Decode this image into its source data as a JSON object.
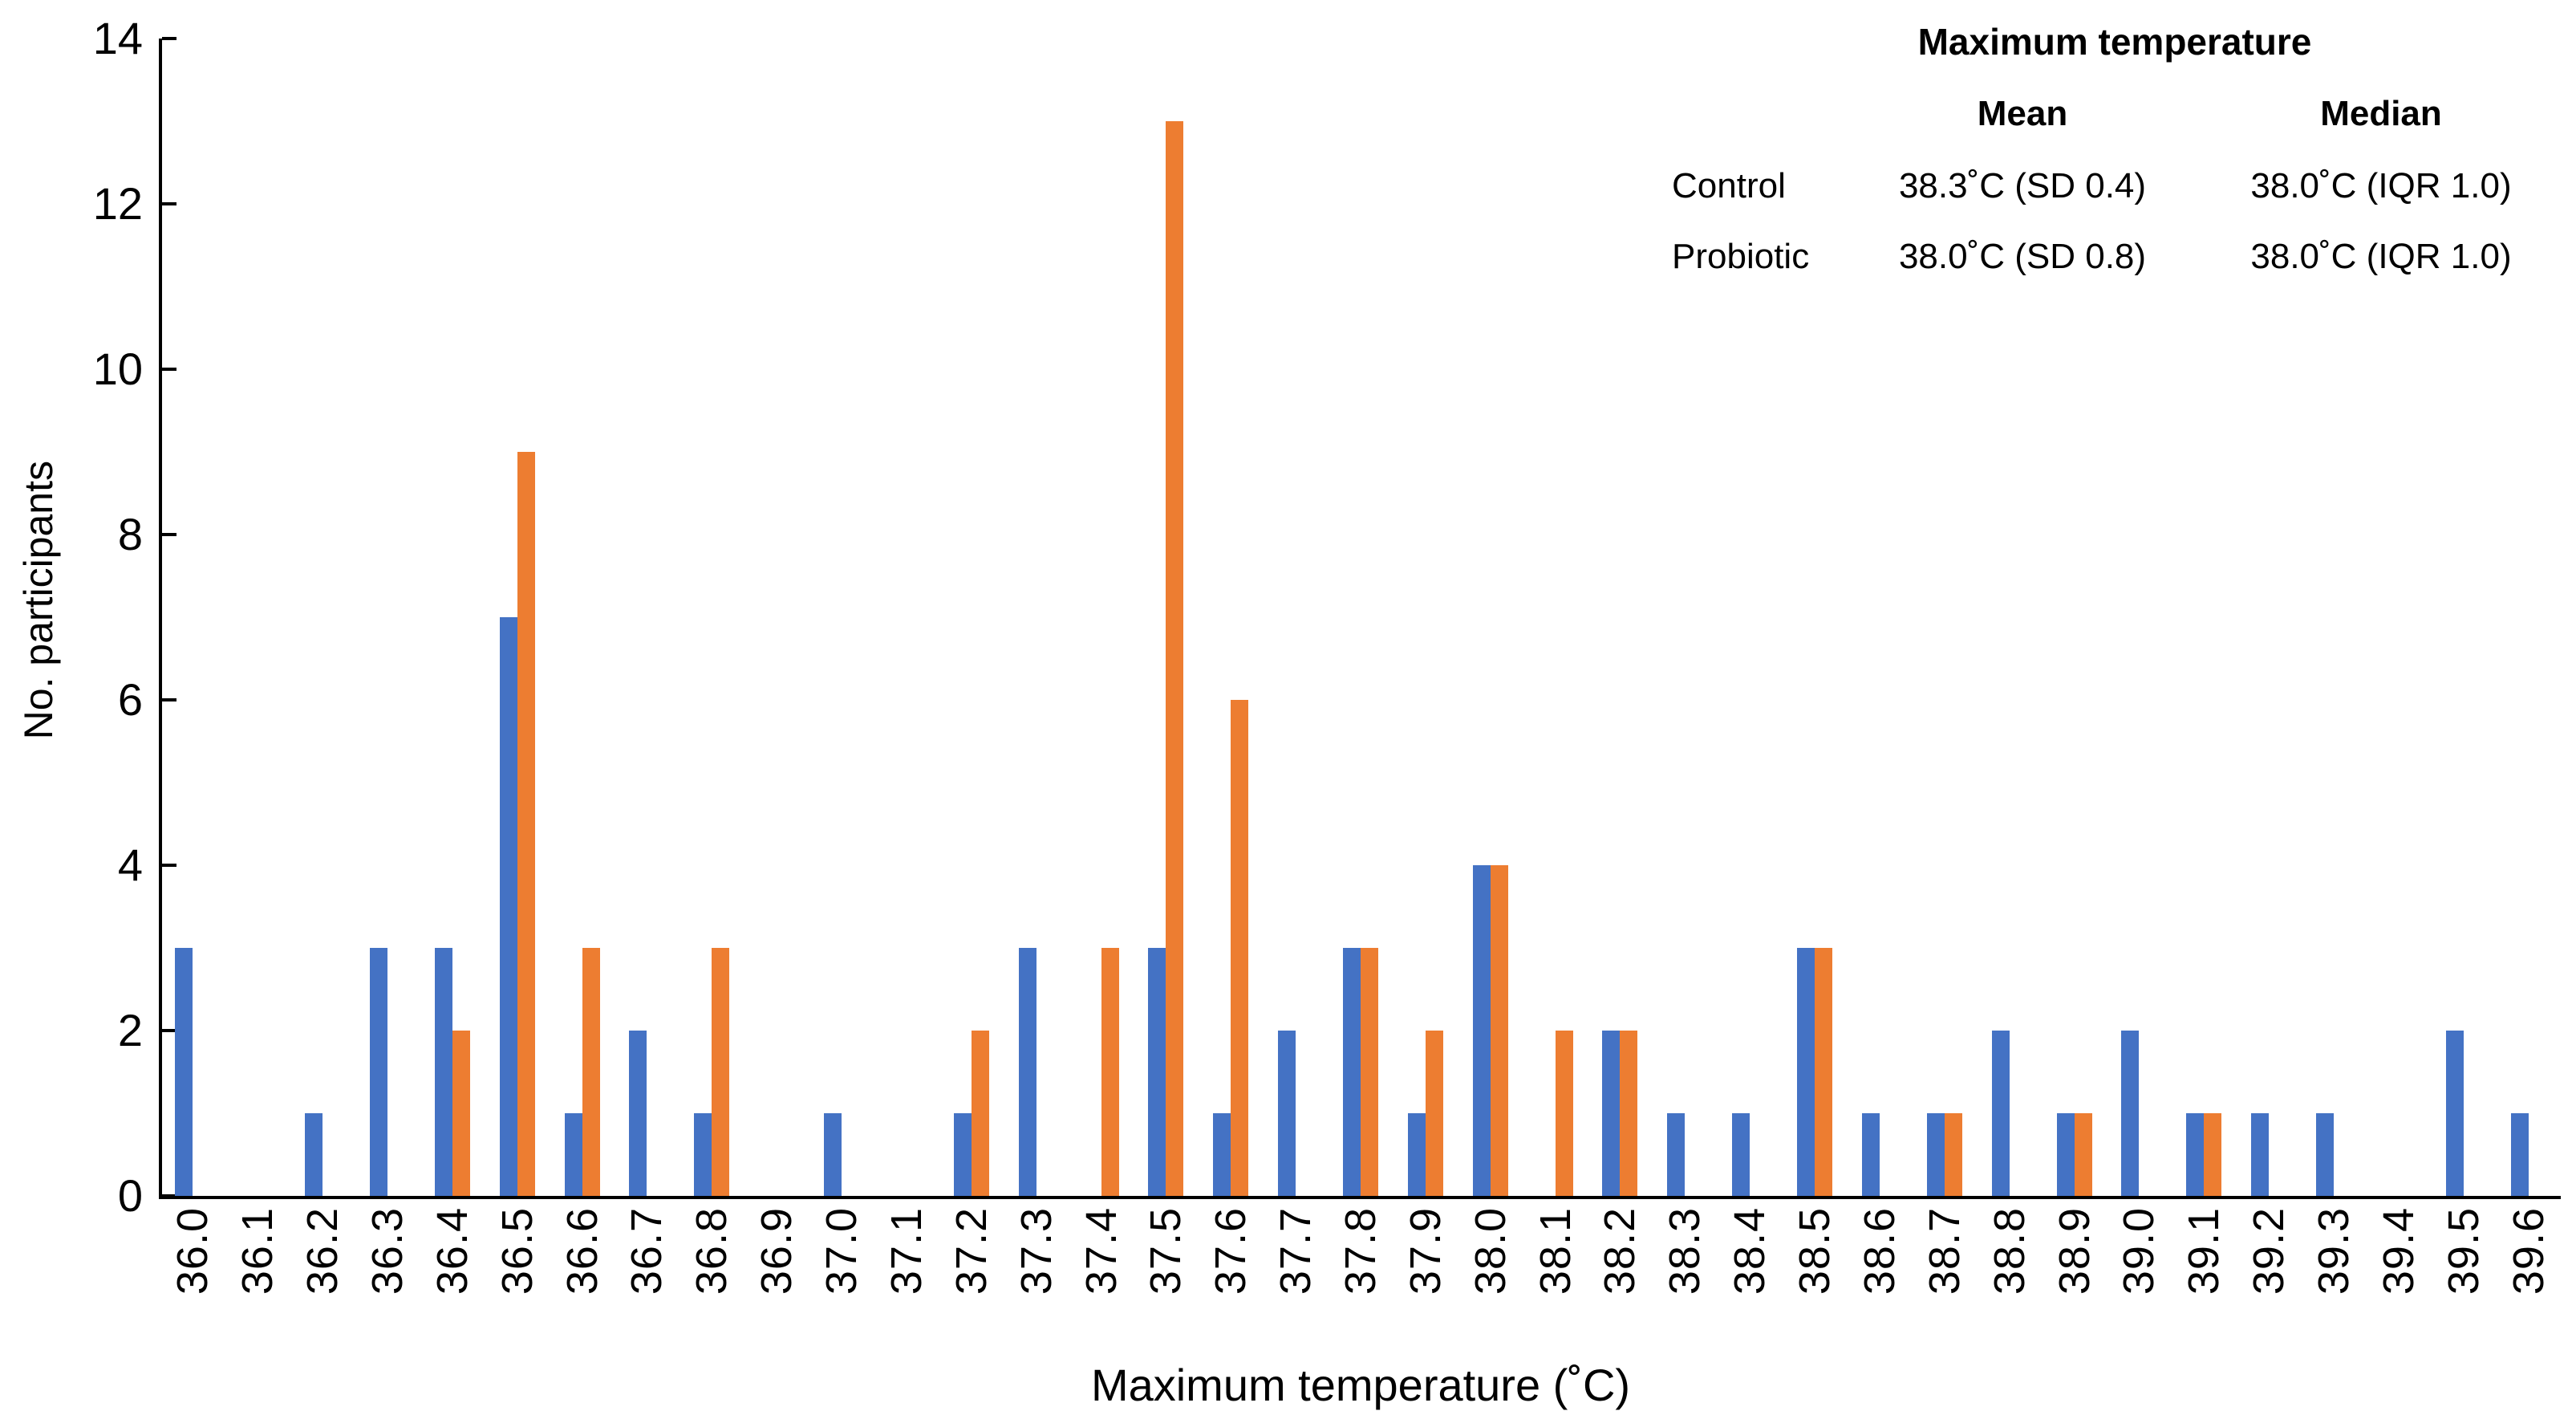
{
  "chart_data": {
    "type": "bar",
    "title": "",
    "categories": [
      "36.0",
      "36.1",
      "36.2",
      "36.3",
      "36.4",
      "36.5",
      "36.6",
      "36.7",
      "36.8",
      "36.9",
      "37.0",
      "37.1",
      "37.2",
      "37.3",
      "37.4",
      "37.5",
      "37.6",
      "37.7",
      "37.8",
      "37.9",
      "38.0",
      "38.1",
      "38.2",
      "38.3",
      "38.4",
      "38.5",
      "38.6",
      "38.7",
      "38.8",
      "38.9",
      "39.0",
      "39.1",
      "39.2",
      "39.3",
      "39.4",
      "39.5",
      "39.6"
    ],
    "series": [
      {
        "name": "Control",
        "color": "#4472C4",
        "values": [
          3,
          0,
          1,
          3,
          3,
          7,
          1,
          2,
          1,
          0,
          1,
          0,
          1,
          3,
          0,
          3,
          1,
          2,
          3,
          1,
          4,
          0,
          2,
          1,
          1,
          3,
          1,
          1,
          2,
          1,
          2,
          1,
          1,
          1,
          0,
          2,
          1
        ]
      },
      {
        "name": "Probiotic",
        "color": "#ED7D31",
        "values": [
          0,
          0,
          0,
          0,
          2,
          9,
          3,
          0,
          3,
          0,
          0,
          0,
          2,
          0,
          3,
          13,
          6,
          0,
          3,
          2,
          4,
          2,
          2,
          0,
          0,
          3,
          0,
          1,
          0,
          1,
          0,
          1,
          0,
          0,
          0,
          0,
          0
        ]
      }
    ],
    "xlabel": "Maximum temperature (˚C)",
    "ylabel": "No. participants",
    "ylim": [
      0,
      14
    ],
    "ytick_step": 2,
    "yticks": [
      0,
      2,
      4,
      6,
      8,
      10,
      12,
      14
    ],
    "grid": false,
    "legend_position": "none",
    "axis_color": "#000000"
  },
  "stats_table": {
    "title": "Maximum temperature",
    "columns": [
      "Mean",
      "Median"
    ],
    "rows": [
      {
        "label": "Control",
        "mean": "38.3˚C (SD 0.4)",
        "median": "38.0˚C (IQR 1.0)"
      },
      {
        "label": "Probiotic",
        "mean": "38.0˚C (SD 0.8)",
        "median": "38.0˚C (IQR 1.0)"
      }
    ]
  }
}
